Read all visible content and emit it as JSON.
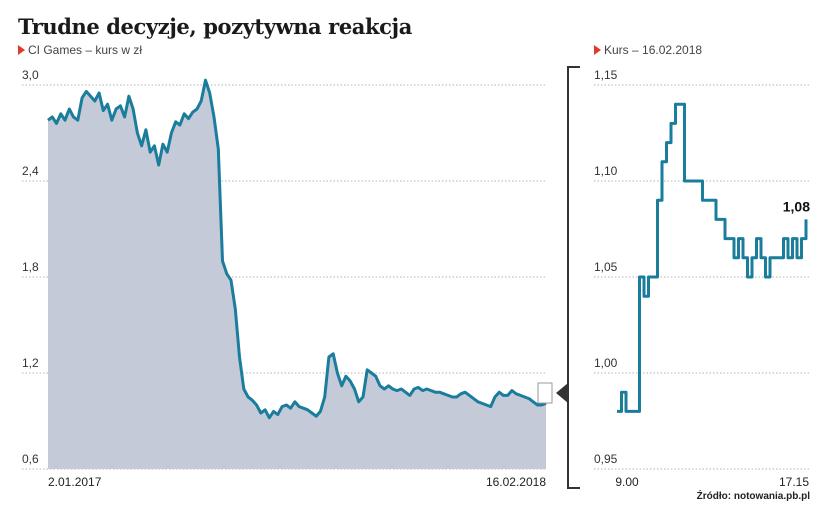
{
  "title": "Trudne decyzje, pozytywna reakcja",
  "source": "Źródło: notowania.pb.pl",
  "colors": {
    "line": "#1a7d9c",
    "area": "#c5cad8",
    "grid": "#9a9a9a",
    "accent": "#e03a2f",
    "bracket": "#333333"
  },
  "chart_data": [
    {
      "type": "area",
      "subtitle": "CI Games – kurs w zł",
      "ylim": [
        0.6,
        3.0
      ],
      "yticks": [
        "3,0",
        "2,4",
        "1,8",
        "1,2",
        "0,6"
      ],
      "ytick_values": [
        3.0,
        2.4,
        1.8,
        1.2,
        0.6
      ],
      "x_labels": [
        "2.01.2017",
        "16.02.2018"
      ],
      "series": [
        {
          "values": [
            2.78,
            2.8,
            2.76,
            2.82,
            2.78,
            2.85,
            2.8,
            2.78,
            2.92,
            2.96,
            2.93,
            2.9,
            2.95,
            2.84,
            2.88,
            2.78,
            2.85,
            2.87,
            2.8,
            2.93,
            2.85,
            2.7,
            2.62,
            2.72,
            2.58,
            2.62,
            2.5,
            2.63,
            2.58,
            2.7,
            2.77,
            2.75,
            2.82,
            2.79,
            2.83,
            2.85,
            2.9,
            3.03,
            2.95,
            2.8,
            2.6,
            1.9,
            1.82,
            1.78,
            1.6,
            1.3,
            1.1,
            1.05,
            1.03,
            1.0,
            0.95,
            0.97,
            0.92,
            0.96,
            0.94,
            0.99,
            1.0,
            0.98,
            1.02,
            0.99,
            0.98,
            0.97,
            0.95,
            0.93,
            0.96,
            1.05,
            1.3,
            1.32,
            1.2,
            1.12,
            1.18,
            1.15,
            1.1,
            1.02,
            1.05,
            1.22,
            1.2,
            1.18,
            1.12,
            1.1,
            1.12,
            1.1,
            1.09,
            1.1,
            1.08,
            1.06,
            1.1,
            1.11,
            1.09,
            1.1,
            1.09,
            1.08,
            1.08,
            1.07,
            1.06,
            1.05,
            1.05,
            1.07,
            1.08,
            1.06,
            1.04,
            1.02,
            1.01,
            1.0,
            0.99,
            1.05,
            1.08,
            1.06,
            1.06,
            1.09,
            1.07,
            1.06,
            1.05,
            1.04,
            1.02,
            1.0,
            1.0,
            1.01
          ]
        }
      ]
    },
    {
      "type": "line",
      "subtitle": "Kurs – 16.02.2018",
      "ylim": [
        0.95,
        1.15
      ],
      "yticks": [
        "1,15",
        "1,10",
        "1,05",
        "1,00",
        "0,95"
      ],
      "ytick_values": [
        1.15,
        1.1,
        1.05,
        1.0,
        0.95
      ],
      "x_labels": [
        "9.00",
        "17.15"
      ],
      "last_value_label": "1,08",
      "series": [
        {
          "values": [
            0.98,
            0.99,
            0.98,
            0.98,
            0.98,
            1.05,
            1.04,
            1.05,
            1.05,
            1.09,
            1.11,
            1.12,
            1.13,
            1.14,
            1.14,
            1.1,
            1.1,
            1.1,
            1.1,
            1.09,
            1.09,
            1.09,
            1.08,
            1.08,
            1.07,
            1.07,
            1.06,
            1.07,
            1.06,
            1.05,
            1.06,
            1.07,
            1.06,
            1.05,
            1.06,
            1.06,
            1.06,
            1.07,
            1.06,
            1.07,
            1.06,
            1.07,
            1.08
          ]
        }
      ]
    }
  ]
}
